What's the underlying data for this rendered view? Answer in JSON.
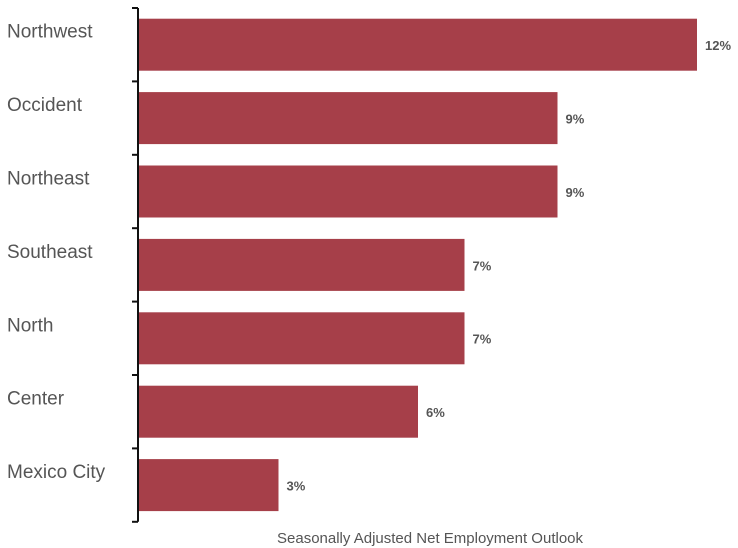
{
  "chart_data": {
    "type": "bar",
    "orientation": "horizontal",
    "categories": [
      "Northwest",
      "Occident",
      "Northeast",
      "Southeast",
      "North",
      "Center",
      "Mexico City"
    ],
    "values": [
      12,
      9,
      9,
      7,
      7,
      6,
      3
    ],
    "value_labels": [
      "12%",
      "9%",
      "9%",
      "7%",
      "7%",
      "6%",
      "3%"
    ],
    "xlabel": "Seasonally Adjusted Net Employment Outlook",
    "ylabel": "",
    "xlim": [
      0,
      12
    ],
    "grid": false,
    "legend": "none",
    "bar_color": "#A63F49"
  }
}
